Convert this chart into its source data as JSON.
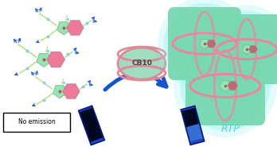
{
  "bg_color": "#ffffff",
  "mol_green": "#90e8b0",
  "mol_pink": "#f07898",
  "mol_chain": "#a8e060",
  "mol_dot": "#88ccee",
  "arrow_blue": "#1555cc",
  "cb_green": "#a0ddc0",
  "cb_rim": "#e08898",
  "cb_label": "CB10",
  "glow_color": "#90f0f0",
  "sphere_green": "#78d8b0",
  "sphere_rim": "#e888a0",
  "guest_pink": "#c06878",
  "vial_outer": "#2244cc",
  "vial_dark": "#000820",
  "vial_blue_glow": "#4488ff",
  "no_emit_text": "No emission",
  "rtp_text": "RTP",
  "rtp_color": "#55ccd4"
}
